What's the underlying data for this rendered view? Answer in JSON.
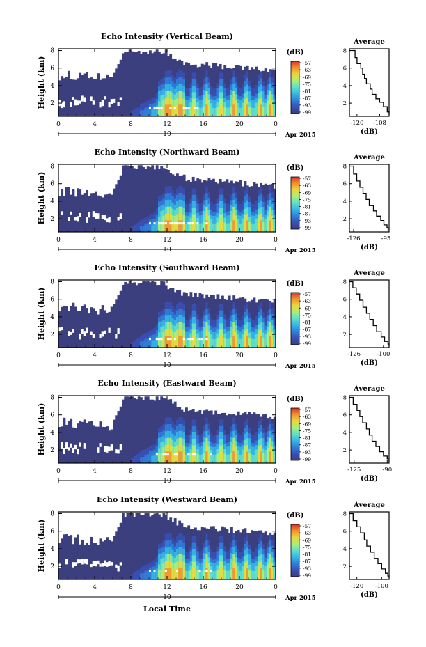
{
  "figure": {
    "x_label": "Local Time",
    "date_day": "10",
    "date_month": "Apr 2015",
    "y_label": "Height (km)",
    "colorbar_unit": "(dB)",
    "colorbar_ticks": [
      "-57",
      "-63",
      "-69",
      "-75",
      "-81",
      "-87",
      "-93",
      "-99"
    ],
    "colorbar_colors": [
      "#3b3f7e",
      "#3a4fb4",
      "#2f7fd8",
      "#35b6e6",
      "#5fe0c8",
      "#a9ef7a",
      "#ead83b",
      "#f2922d",
      "#d7352a"
    ]
  },
  "chart_data": [
    {
      "type": "heatmap",
      "title": "Echo Intensity (Vertical Beam)",
      "xlabel": "Local Time",
      "ylabel": "Height (km)",
      "x_ticks": [
        "0",
        "4",
        "8",
        "12",
        "16",
        "20",
        "0"
      ],
      "xlim": [
        0,
        24
      ],
      "y_ticks": [
        "2",
        "4",
        "6",
        "8"
      ],
      "ylim": [
        0.5,
        8.2
      ],
      "clim": [
        -99,
        -57
      ],
      "colorbar_label": "(dB)",
      "profile": {
        "title": "Average",
        "xlabel": "(dB)",
        "x_ticks": [
          "-120",
          "-108"
        ],
        "xlim": [
          -124,
          -103
        ],
        "ylim": [
          0.5,
          8.2
        ],
        "points": [
          [
            -124,
            8.0
          ],
          [
            -121,
            7.2
          ],
          [
            -120,
            6.5
          ],
          [
            -118,
            6.0
          ],
          [
            -117,
            5.3
          ],
          [
            -116,
            4.8
          ],
          [
            -115,
            4.2
          ],
          [
            -113,
            3.6
          ],
          [
            -112,
            3.0
          ],
          [
            -110,
            2.5
          ],
          [
            -108,
            2.1
          ],
          [
            -106,
            1.6
          ],
          [
            -104,
            1.0
          ],
          [
            -103,
            0.7
          ]
        ]
      }
    },
    {
      "type": "heatmap",
      "title": "Echo Intensity (Northward Beam)",
      "xlabel": "Local Time",
      "ylabel": "Height (km)",
      "x_ticks": [
        "0",
        "4",
        "8",
        "12",
        "16",
        "20",
        "0"
      ],
      "xlim": [
        0,
        24
      ],
      "y_ticks": [
        "2",
        "4",
        "6",
        "8"
      ],
      "ylim": [
        0.5,
        8.2
      ],
      "clim": [
        -99,
        -57
      ],
      "colorbar_label": "(dB)",
      "profile": {
        "title": "Average",
        "xlabel": "(dB)",
        "x_ticks": [
          "-126",
          "-95"
        ],
        "xlim": [
          -130,
          -92
        ],
        "ylim": [
          0.5,
          8.2
        ],
        "points": [
          [
            -130,
            8.0
          ],
          [
            -126,
            7.1
          ],
          [
            -123,
            6.3
          ],
          [
            -120,
            5.6
          ],
          [
            -117,
            4.9
          ],
          [
            -114,
            4.2
          ],
          [
            -111,
            3.5
          ],
          [
            -107,
            2.9
          ],
          [
            -104,
            2.3
          ],
          [
            -100,
            1.8
          ],
          [
            -97,
            1.3
          ],
          [
            -94,
            1.0
          ],
          [
            -93,
            0.7
          ]
        ]
      }
    },
    {
      "type": "heatmap",
      "title": "Echo Intensity (Southward Beam)",
      "xlabel": "Local Time",
      "ylabel": "Height (km)",
      "x_ticks": [
        "0",
        "4",
        "8",
        "12",
        "16",
        "20",
        "0"
      ],
      "xlim": [
        0,
        24
      ],
      "y_ticks": [
        "2",
        "4",
        "6",
        "8"
      ],
      "ylim": [
        0.5,
        8.2
      ],
      "clim": [
        -99,
        -57
      ],
      "colorbar_label": "(dB)",
      "profile": {
        "title": "Average",
        "xlabel": "(dB)",
        "x_ticks": [
          "-126",
          "-100"
        ],
        "xlim": [
          -130,
          -95
        ],
        "ylim": [
          0.5,
          8.2
        ],
        "points": [
          [
            -130,
            8.0
          ],
          [
            -127,
            7.3
          ],
          [
            -124,
            6.6
          ],
          [
            -121,
            5.9
          ],
          [
            -118,
            5.1
          ],
          [
            -115,
            4.4
          ],
          [
            -112,
            3.7
          ],
          [
            -109,
            3.0
          ],
          [
            -106,
            2.3
          ],
          [
            -102,
            1.7
          ],
          [
            -99,
            1.2
          ],
          [
            -96,
            0.9
          ],
          [
            -95,
            0.7
          ]
        ]
      }
    },
    {
      "type": "heatmap",
      "title": "Echo Intensity (Eastward Beam)",
      "xlabel": "Local Time",
      "ylabel": "Height (km)",
      "x_ticks": [
        "0",
        "4",
        "8",
        "12",
        "16",
        "20",
        "0"
      ],
      "xlim": [
        0,
        24
      ],
      "y_ticks": [
        "2",
        "4",
        "6",
        "8"
      ],
      "ylim": [
        0.5,
        8.2
      ],
      "clim": [
        -99,
        -57
      ],
      "colorbar_label": "(dB)",
      "profile": {
        "title": "Average",
        "xlabel": "(dB)",
        "x_ticks": [
          "-125",
          "-90"
        ],
        "xlim": [
          -130,
          -88
        ],
        "ylim": [
          0.5,
          8.2
        ],
        "points": [
          [
            -130,
            8.0
          ],
          [
            -126,
            7.2
          ],
          [
            -122,
            6.5
          ],
          [
            -119,
            5.8
          ],
          [
            -116,
            5.1
          ],
          [
            -112,
            4.4
          ],
          [
            -109,
            3.7
          ],
          [
            -106,
            3.0
          ],
          [
            -102,
            2.4
          ],
          [
            -98,
            1.8
          ],
          [
            -94,
            1.3
          ],
          [
            -90,
            1.0
          ],
          [
            -89,
            0.7
          ]
        ]
      }
    },
    {
      "type": "heatmap",
      "title": "Echo Intensity (Westward Beam)",
      "xlabel": "Local Time",
      "ylabel": "Height (km)",
      "x_ticks": [
        "0",
        "4",
        "8",
        "12",
        "16",
        "20",
        "0"
      ],
      "xlim": [
        0,
        24
      ],
      "y_ticks": [
        "2",
        "4",
        "6",
        "8"
      ],
      "ylim": [
        0.5,
        8.2
      ],
      "clim": [
        -99,
        -57
      ],
      "colorbar_label": "(dB)",
      "profile": {
        "title": "Average",
        "xlabel": "(dB)",
        "x_ticks": [
          "-120",
          "-100"
        ],
        "xlim": [
          -126,
          -94
        ],
        "ylim": [
          0.5,
          8.2
        ],
        "points": [
          [
            -126,
            8.0
          ],
          [
            -123,
            7.2
          ],
          [
            -120,
            6.5
          ],
          [
            -117,
            5.8
          ],
          [
            -114,
            5.0
          ],
          [
            -112,
            4.3
          ],
          [
            -109,
            3.6
          ],
          [
            -106,
            2.9
          ],
          [
            -103,
            2.3
          ],
          [
            -100,
            1.7
          ],
          [
            -97,
            1.2
          ],
          [
            -95,
            0.9
          ],
          [
            -94,
            0.7
          ]
        ]
      }
    }
  ]
}
